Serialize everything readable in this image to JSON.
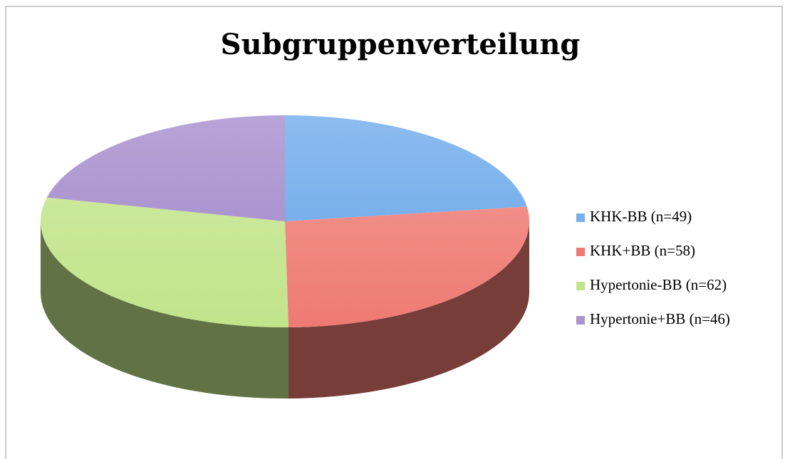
{
  "chart_data": {
    "type": "pie",
    "title": "Subgruppenverteilung",
    "categories": [
      "KHK-BB (n=49)",
      "KHK+BB (n=58)",
      "Hypertonie-BB (n=62)",
      "Hypertonie+BB (n=46)"
    ],
    "values": [
      49,
      58,
      62,
      46
    ],
    "colors": [
      "#78b0ec",
      "#ee7a72",
      "#c2e48a",
      "#ab94d0"
    ],
    "legend": "right"
  }
}
